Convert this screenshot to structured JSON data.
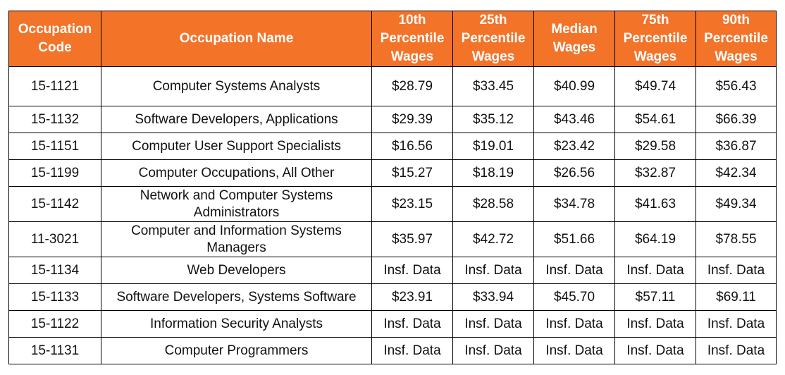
{
  "table": {
    "header_color": "#f37329",
    "columns": [
      "Occupation Code",
      "Occupation Name",
      "10th Percentile Wages",
      "25th Percentile Wages",
      "Median Wages",
      "75th Percentile Wages",
      "90th Percentile Wages"
    ],
    "rows": [
      [
        "15-1121",
        "Computer Systems Analysts",
        "$28.79",
        "$33.45",
        "$40.99",
        "$49.74",
        "$56.43"
      ],
      [
        "15-1132",
        "Software Developers, Applications",
        "$29.39",
        "$35.12",
        "$43.46",
        "$54.61",
        "$66.39"
      ],
      [
        "15-1151",
        "Computer User Support Specialists",
        "$16.56",
        "$19.01",
        "$23.42",
        "$29.58",
        "$36.87"
      ],
      [
        "15-1199",
        "Computer Occupations, All Other",
        "$15.27",
        "$18.19",
        "$26.56",
        "$32.87",
        "$42.34"
      ],
      [
        "15-1142",
        "Network and Computer Systems Administrators",
        "$23.15",
        "$28.58",
        "$34.78",
        "$41.63",
        "$49.34"
      ],
      [
        "11-3021",
        "Computer and Information Systems Managers",
        "$35.97",
        "$42.72",
        "$51.66",
        "$64.19",
        "$78.55"
      ],
      [
        "15-1134",
        "Web Developers",
        "Insf. Data",
        "Insf. Data",
        "Insf. Data",
        "Insf. Data",
        "Insf. Data"
      ],
      [
        "15-1133",
        "Software Developers, Systems Software",
        "$23.91",
        "$33.94",
        "$45.70",
        "$57.11",
        "$69.11"
      ],
      [
        "15-1122",
        "Information Security Analysts",
        "Insf. Data",
        "Insf. Data",
        "Insf. Data",
        "Insf. Data",
        "Insf. Data"
      ],
      [
        "15-1131",
        "Computer Programmers",
        "Insf. Data",
        "Insf. Data",
        "Insf. Data",
        "Insf. Data",
        "Insf. Data"
      ]
    ]
  }
}
